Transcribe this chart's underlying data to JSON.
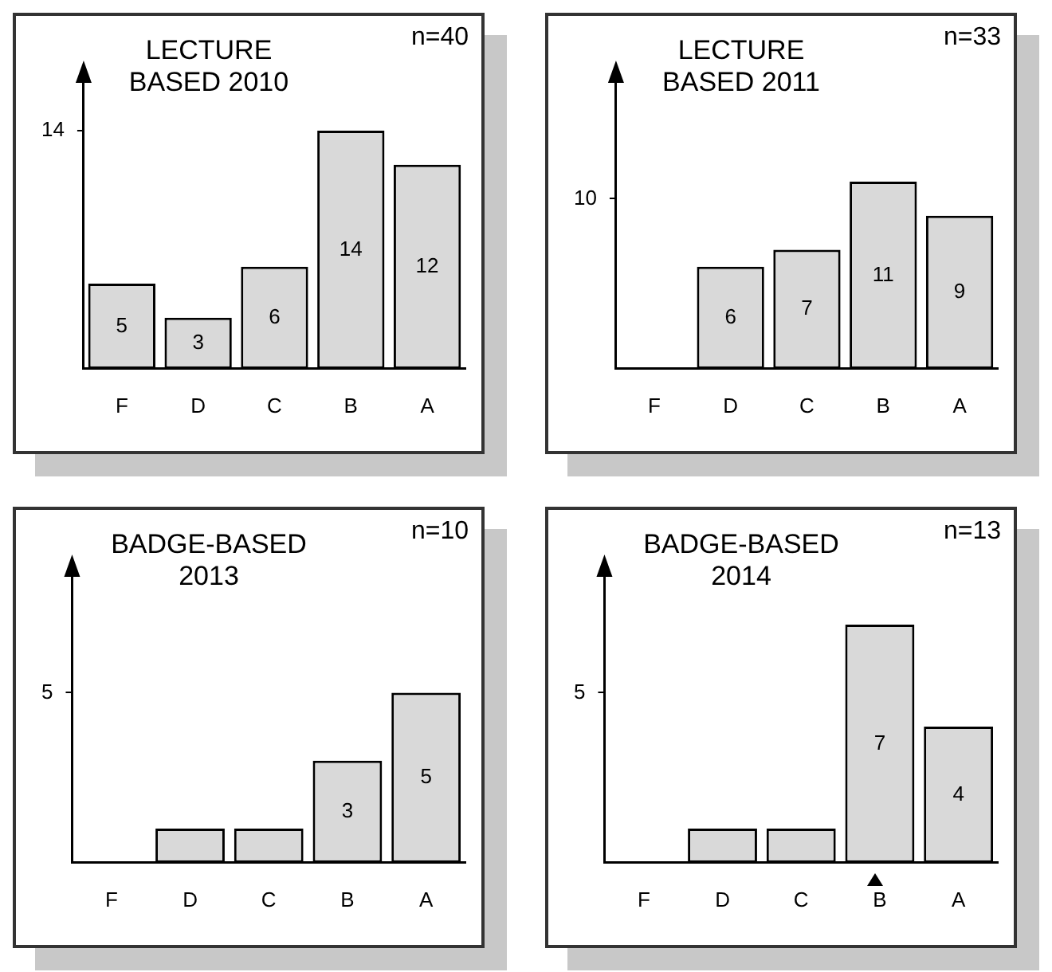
{
  "chart_data": [
    {
      "type": "bar",
      "title": "LECTURE BASED 2010",
      "categories": [
        "F",
        "D",
        "C",
        "B",
        "A"
      ],
      "values": [
        5,
        3,
        6,
        14,
        12
      ],
      "color": "#d9d9d9",
      "ylim": [
        0,
        17
      ],
      "yticks": [
        14
      ],
      "data_labels": true,
      "annotations": [
        "n=40"
      ]
    },
    {
      "type": "bar",
      "title": "LECTURE BASED 2011",
      "categories": [
        "F",
        "D",
        "C",
        "B",
        "A"
      ],
      "values": [
        0,
        6,
        7,
        11,
        9
      ],
      "value_labels": [
        null,
        "6",
        "7",
        "11",
        "9"
      ],
      "color": "#d9d9d9",
      "ylim": [
        0,
        17
      ],
      "yticks": [
        10
      ],
      "annotations": [
        "n=33"
      ]
    },
    {
      "type": "bar",
      "title": "BADGE-BASED 2013",
      "categories": [
        "F",
        "D",
        "C",
        "B",
        "A"
      ],
      "values": [
        0,
        1,
        1,
        3,
        5
      ],
      "value_labels": [
        null,
        null,
        null,
        "3",
        "5"
      ],
      "color": "#d9d9d9",
      "ylim": [
        0,
        8.5
      ],
      "yticks": [
        5
      ],
      "annotations": [
        "n=10"
      ]
    },
    {
      "type": "bar",
      "title": "BADGE-BASED 2014",
      "categories": [
        "F",
        "D",
        "C",
        "B",
        "A"
      ],
      "values": [
        0,
        1,
        1,
        7,
        4
      ],
      "value_labels": [
        null,
        null,
        null,
        "7",
        "4"
      ],
      "color": "#d9d9d9",
      "ylim": [
        0,
        8.5
      ],
      "yticks": [
        5
      ],
      "annotations": [
        "n=13"
      ]
    }
  ]
}
